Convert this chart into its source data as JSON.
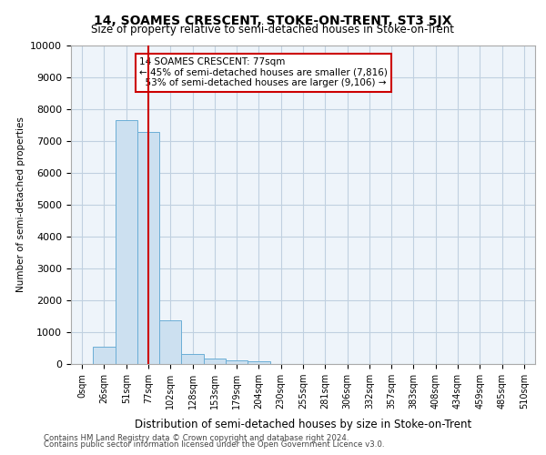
{
  "title": "14, SOAMES CRESCENT, STOKE-ON-TRENT, ST3 5JX",
  "subtitle": "Size of property relative to semi-detached houses in Stoke-on-Trent",
  "xlabel": "Distribution of semi-detached houses by size in Stoke-on-Trent",
  "ylabel": "Number of semi-detached properties",
  "footer_line1": "Contains HM Land Registry data © Crown copyright and database right 2024.",
  "footer_line2": "Contains public sector information licensed under the Open Government Licence v3.0.",
  "bin_labels": [
    "0sqm",
    "26sqm",
    "51sqm",
    "77sqm",
    "102sqm",
    "128sqm",
    "153sqm",
    "179sqm",
    "204sqm",
    "230sqm",
    "255sqm",
    "281sqm",
    "306sqm",
    "332sqm",
    "357sqm",
    "383sqm",
    "408sqm",
    "434sqm",
    "459sqm",
    "485sqm",
    "510sqm"
  ],
  "bar_values": [
    0,
    530,
    7650,
    7280,
    1380,
    320,
    170,
    120,
    90,
    0,
    0,
    0,
    0,
    0,
    0,
    0,
    0,
    0,
    0,
    0,
    0
  ],
  "bar_color": "#cce0f0",
  "bar_edge_color": "#6baed6",
  "property_label": "14 SOAMES CRESCENT: 77sqm",
  "pct_smaller": 45,
  "count_smaller": 7816,
  "pct_larger": 53,
  "count_larger": 9106,
  "vline_x_index": 3,
  "vline_color": "#cc0000",
  "annotation_box_color": "#cc0000",
  "ylim": [
    0,
    10000
  ],
  "yticks": [
    0,
    1000,
    2000,
    3000,
    4000,
    5000,
    6000,
    7000,
    8000,
    9000,
    10000
  ],
  "grid_color": "#c0d0e0",
  "bg_color": "#eef4fa"
}
